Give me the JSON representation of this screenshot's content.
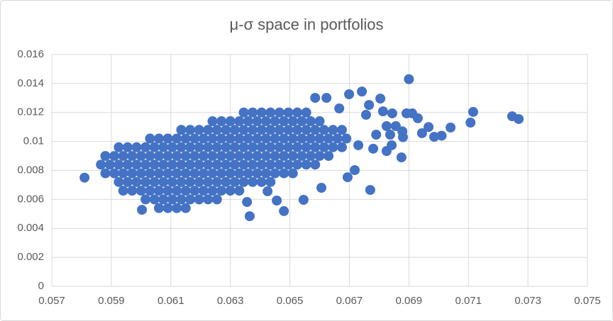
{
  "chart_data": {
    "type": "scatter",
    "title": "μ-σ space in portfolios",
    "color": "#4472c4",
    "grid": true,
    "xlim": [
      0.057,
      0.075
    ],
    "xticks": [
      0.057,
      0.059,
      0.061,
      0.063,
      0.065,
      0.067,
      0.069,
      0.071,
      0.073,
      0.075
    ],
    "ylim": [
      0,
      0.016
    ],
    "yticks": [
      0,
      0.002,
      0.004,
      0.006,
      0.008,
      0.01,
      0.012,
      0.014,
      0.016
    ],
    "x": [
      0.0606,
      0.0609,
      0.0612,
      0.0615,
      0.06015,
      0.06045,
      0.06075,
      0.06105,
      0.06135,
      0.06165,
      0.06195,
      0.06225,
      0.06255,
      0.0594,
      0.0597,
      0.06,
      0.0603,
      0.0606,
      0.0609,
      0.0612,
      0.0615,
      0.0618,
      0.0621,
      0.0624,
      0.0627,
      0.063,
      0.0633,
      0.05925,
      0.05955,
      0.05985,
      0.06015,
      0.06045,
      0.06075,
      0.06105,
      0.06135,
      0.06165,
      0.06195,
      0.06225,
      0.06255,
      0.06285,
      0.06315,
      0.06345,
      0.06375,
      0.06405,
      0.06435,
      0.0588,
      0.0591,
      0.0594,
      0.0597,
      0.06,
      0.0603,
      0.0606,
      0.0609,
      0.0612,
      0.0615,
      0.0618,
      0.0621,
      0.0624,
      0.0627,
      0.063,
      0.0633,
      0.0636,
      0.0639,
      0.0642,
      0.0645,
      0.0648,
      0.0651,
      0.05865,
      0.05895,
      0.05925,
      0.05955,
      0.05985,
      0.06015,
      0.06045,
      0.06075,
      0.06105,
      0.06135,
      0.06165,
      0.06195,
      0.06225,
      0.06255,
      0.06285,
      0.06315,
      0.06345,
      0.06375,
      0.06405,
      0.06435,
      0.06465,
      0.06495,
      0.06525,
      0.06555,
      0.06585,
      0.0588,
      0.0591,
      0.0594,
      0.0597,
      0.06,
      0.0603,
      0.0606,
      0.0609,
      0.0612,
      0.0615,
      0.0618,
      0.0621,
      0.0624,
      0.0627,
      0.063,
      0.0633,
      0.0636,
      0.0639,
      0.0642,
      0.0645,
      0.0648,
      0.0651,
      0.0654,
      0.0657,
      0.066,
      0.0663,
      0.05925,
      0.05955,
      0.05985,
      0.06015,
      0.06045,
      0.06075,
      0.06105,
      0.06135,
      0.06165,
      0.06195,
      0.06225,
      0.06255,
      0.06285,
      0.06315,
      0.06345,
      0.06375,
      0.06405,
      0.06435,
      0.06465,
      0.06495,
      0.06525,
      0.06555,
      0.06585,
      0.06615,
      0.06645,
      0.06675,
      0.0603,
      0.0606,
      0.0609,
      0.0612,
      0.0615,
      0.0618,
      0.0621,
      0.0624,
      0.0627,
      0.063,
      0.0633,
      0.0636,
      0.0639,
      0.0642,
      0.0645,
      0.0648,
      0.0651,
      0.0654,
      0.0657,
      0.066,
      0.0663,
      0.0666,
      0.0669,
      0.06135,
      0.06165,
      0.06195,
      0.06225,
      0.06255,
      0.06285,
      0.06315,
      0.06345,
      0.06375,
      0.06405,
      0.06435,
      0.06465,
      0.06495,
      0.06525,
      0.06555,
      0.06585,
      0.06615,
      0.06645,
      0.06675,
      0.0624,
      0.0627,
      0.063,
      0.0633,
      0.0636,
      0.0639,
      0.0642,
      0.0645,
      0.0648,
      0.0651,
      0.0654,
      0.0657,
      0.066,
      0.06345,
      0.06375,
      0.06405,
      0.06435,
      0.06465,
      0.06495,
      0.06525,
      0.06555,
      0.0581,
      0.069,
      0.07247,
      0.07269,
      0.07116,
      0.07107,
      0.0704,
      0.06985,
      0.0701,
      0.06966,
      0.06944,
      0.0693,
      0.06911,
      0.06892,
      0.0688,
      0.06875,
      0.06878,
      0.06842,
      0.06825,
      0.0677,
      0.06804,
      0.06742,
      0.06699,
      0.06756,
      0.06813,
      0.06844,
      0.06825,
      0.0679,
      0.06837,
      0.06856,
      0.06718,
      0.06694,
      0.06606,
      0.06546,
      0.0648,
      0.06456,
      0.06425,
      0.06365,
      0.06356,
      0.06623,
      0.06585,
      0.06666,
      0.06003,
      0.06766,
      0.0673,
      0.0678
    ],
    "values": [
      0.0054,
      0.0054,
      0.0054,
      0.0054,
      0.006,
      0.006,
      0.006,
      0.006,
      0.006,
      0.006,
      0.006,
      0.006,
      0.006,
      0.0066,
      0.0066,
      0.0066,
      0.0066,
      0.0066,
      0.0066,
      0.0066,
      0.0066,
      0.0066,
      0.0066,
      0.0066,
      0.0066,
      0.0066,
      0.0066,
      0.0072,
      0.0072,
      0.0072,
      0.0072,
      0.0072,
      0.0072,
      0.0072,
      0.0072,
      0.0072,
      0.0072,
      0.0072,
      0.0072,
      0.0072,
      0.0072,
      0.0072,
      0.0072,
      0.0072,
      0.0072,
      0.0078,
      0.0078,
      0.0078,
      0.0078,
      0.0078,
      0.0078,
      0.0078,
      0.0078,
      0.0078,
      0.0078,
      0.0078,
      0.0078,
      0.0078,
      0.0078,
      0.0078,
      0.0078,
      0.0078,
      0.0078,
      0.0078,
      0.0078,
      0.0078,
      0.0078,
      0.0084,
      0.0084,
      0.0084,
      0.0084,
      0.0084,
      0.0084,
      0.0084,
      0.0084,
      0.0084,
      0.0084,
      0.0084,
      0.0084,
      0.0084,
      0.0084,
      0.0084,
      0.0084,
      0.0084,
      0.0084,
      0.0084,
      0.0084,
      0.0084,
      0.0084,
      0.0084,
      0.0084,
      0.0084,
      0.009,
      0.009,
      0.009,
      0.009,
      0.009,
      0.009,
      0.009,
      0.009,
      0.009,
      0.009,
      0.009,
      0.009,
      0.009,
      0.009,
      0.009,
      0.009,
      0.009,
      0.009,
      0.009,
      0.009,
      0.009,
      0.009,
      0.009,
      0.009,
      0.009,
      0.009,
      0.0096,
      0.0096,
      0.0096,
      0.0096,
      0.0096,
      0.0096,
      0.0096,
      0.0096,
      0.0096,
      0.0096,
      0.0096,
      0.0096,
      0.0096,
      0.0096,
      0.0096,
      0.0096,
      0.0096,
      0.0096,
      0.0096,
      0.0096,
      0.0096,
      0.0096,
      0.0096,
      0.0096,
      0.0096,
      0.0096,
      0.0102,
      0.0102,
      0.0102,
      0.0102,
      0.0102,
      0.0102,
      0.0102,
      0.0102,
      0.0102,
      0.0102,
      0.0102,
      0.0102,
      0.0102,
      0.0102,
      0.0102,
      0.0102,
      0.0102,
      0.0102,
      0.0102,
      0.0102,
      0.0102,
      0.0102,
      0.0102,
      0.0108,
      0.0108,
      0.0108,
      0.0108,
      0.0108,
      0.0108,
      0.0108,
      0.0108,
      0.0108,
      0.0108,
      0.0108,
      0.0108,
      0.0108,
      0.0108,
      0.0108,
      0.0108,
      0.0108,
      0.0108,
      0.0108,
      0.0114,
      0.0114,
      0.0114,
      0.0114,
      0.0114,
      0.0114,
      0.0114,
      0.0114,
      0.0114,
      0.0114,
      0.0114,
      0.0114,
      0.0114,
      0.012,
      0.012,
      0.012,
      0.012,
      0.012,
      0.012,
      0.012,
      0.012,
      0.0075,
      0.0143,
      0.01174,
      0.01155,
      0.01204,
      0.0113,
      0.01096,
      0.01032,
      0.0104,
      0.011,
      0.01057,
      0.0116,
      0.01194,
      0.01194,
      0.0103,
      0.0089,
      0.0107,
      0.00974,
      0.00934,
      0.00665,
      0.01296,
      0.01345,
      0.01326,
      0.01184,
      0.01208,
      0.01194,
      0.01106,
      0.01047,
      0.01047,
      0.01106,
      0.00802,
      0.00753,
      0.0068,
      0.00597,
      0.00519,
      0.00592,
      0.00656,
      0.00484,
      0.00582,
      0.01301,
      0.01301,
      0.01228,
      0.00528,
      0.01252,
      0.00974,
      0.0095
    ]
  }
}
